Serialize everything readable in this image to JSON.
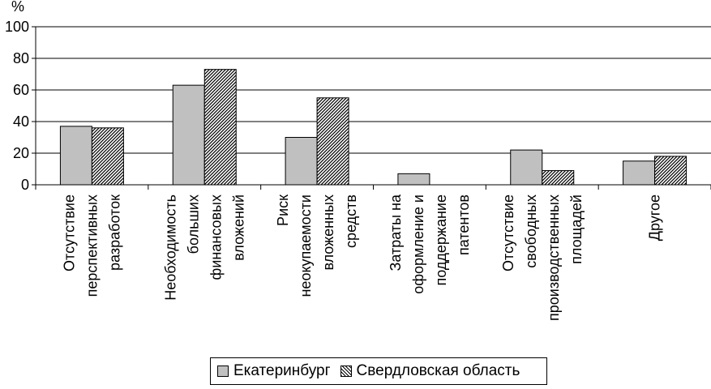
{
  "chart_data": {
    "type": "bar",
    "unit_label": "%",
    "categories": [
      [
        "Отсутствие",
        "перспективных",
        "разработок"
      ],
      [
        "Необходимость",
        "больших",
        "финансовых",
        "вложений"
      ],
      [
        "Риск",
        "неокупаемости",
        "вложенных",
        "средств"
      ],
      [
        "Затраты на",
        "оформление и",
        "поддержание",
        "патентов"
      ],
      [
        "Отсутствие",
        "свободных",
        "производственных",
        "площадей"
      ],
      [
        "Другое"
      ]
    ],
    "series": [
      {
        "name": "Екатеринбург",
        "color": "#c0c0c0",
        "pattern": "solid",
        "values": [
          37,
          63,
          30,
          7,
          22,
          15
        ]
      },
      {
        "name": "Свердловская область",
        "color": "#808080",
        "pattern": "hatch",
        "values": [
          36,
          73,
          55,
          0,
          9,
          18
        ]
      }
    ],
    "ylim": [
      0,
      100
    ],
    "yticks": [
      0,
      20,
      40,
      60,
      80,
      100
    ],
    "grid": true,
    "legend_position": "bottom"
  }
}
